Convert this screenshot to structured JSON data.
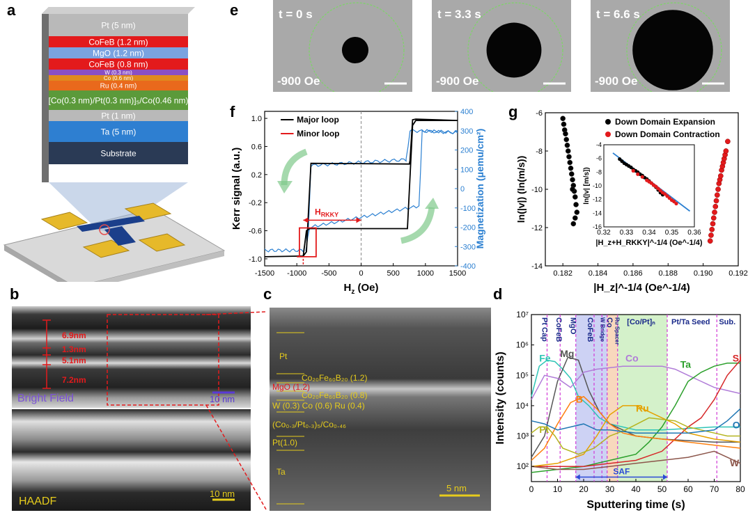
{
  "panels": {
    "a": "a",
    "b": "b",
    "c": "c",
    "d": "d",
    "e": "e",
    "f": "f",
    "g": "g"
  },
  "stack_layers": [
    {
      "label": "Pt (5 nm)",
      "color": "#b9b9b9"
    },
    {
      "label": "CoFeB (1.2 nm)",
      "color": "#e31a1c"
    },
    {
      "label": "MgO (1.2 nm)",
      "color": "#7aa3e0"
    },
    {
      "label": "CoFeB (0.8 nm)",
      "color": "#e31a1c"
    },
    {
      "label": "W (0.3 nm)",
      "color": "#8a4fc4"
    },
    {
      "label": "Co (0.6 nm)",
      "color": "#e08a1e"
    },
    {
      "label": "Ru (0.4 nm)",
      "color": "#e9691c"
    },
    {
      "label": "[Co(0.3 nm)/Pt(0.3 nm)]₅/Co(0.46 nm)",
      "color": "#5b9a3a"
    },
    {
      "label": "Pt (1 nm)",
      "color": "#b9b9b9"
    },
    {
      "label": "Ta (5 nm)",
      "color": "#2e7fd1"
    },
    {
      "label": "Substrate",
      "color": "#2a3a55"
    }
  ],
  "panel_b": {
    "thickness": [
      "6.9nm",
      "1.3nm",
      "5.1nm",
      "7.2nm"
    ],
    "bright_field": "Bright Field",
    "haadf": "HAADF",
    "scale": "10 nm"
  },
  "panel_c": {
    "labels": [
      "Pt",
      "Co₂₀Fe₆₀B₂₀ (1.2)",
      "MgO (1.2)",
      "Co₂₀Fe₆₀B₂₀ (0.8)",
      "W (0.3) Co (0.6) Ru (0.4)",
      "(Co₀.₃/Pt₀.₃)₅/Co₀.₄₆",
      "Pt(1.0)",
      "Ta"
    ],
    "scale": "5 nm"
  },
  "panel_e": {
    "frames": [
      {
        "time": "t = 0 s",
        "field": "-900 Oe",
        "domain_r": 0.28
      },
      {
        "time": "t = 3.3 s",
        "field": "-900 Oe",
        "domain_r": 0.58
      },
      {
        "time": "t = 6.6 s",
        "field": "-900 Oe",
        "domain_r": 0.85
      }
    ]
  },
  "chart_data": [
    {
      "id": "f",
      "type": "line",
      "xlabel": "H_z (Oe)",
      "ylabel": "Kerr signal (a.u.)",
      "y2label": "Magnetization (μemu/cm²)",
      "xlim": [
        -1500,
        1500
      ],
      "ylim": [
        -1.1,
        1.1
      ],
      "y2lim": [
        -400,
        400
      ],
      "xticks": [
        "-1500",
        "-1000",
        "-500",
        "0",
        "500",
        "1000",
        "1500"
      ],
      "yticks": [
        "1.0",
        "0.6",
        "0.2",
        "-0.2",
        "-0.6",
        "-1.0"
      ],
      "y2ticks": [
        "400",
        "300",
        "200",
        "100",
        "0",
        "-100",
        "-200",
        "-300",
        "-400"
      ],
      "legend": [
        "Major loop",
        "Minor loop"
      ],
      "annotation": "H_RKKY",
      "series": [
        {
          "name": "Major loop",
          "color": "#000000",
          "x": [
            -1500,
            -900,
            -850,
            -800,
            -780,
            750,
            760,
            800,
            850,
            1500,
            850,
            800,
            720,
            -800,
            -850,
            -900,
            -1500
          ],
          "y": [
            -0.97,
            -0.96,
            -0.9,
            0.0,
            0.36,
            0.35,
            0.4,
            0.98,
            0.99,
            0.97,
            0.97,
            0.9,
            -0.57,
            -0.57,
            -0.6,
            -0.96,
            -0.97
          ]
        },
        {
          "name": "Minor loop",
          "color": "#e31a1c",
          "x": [
            -1000,
            -960,
            -960,
            -700,
            -700,
            -1000
          ],
          "y": [
            -0.97,
            -0.97,
            -0.56,
            -0.56,
            -0.97,
            -0.97
          ]
        }
      ]
    },
    {
      "id": "g",
      "type": "scatter",
      "xlabel": "|H_z|^-1/4 (Oe^-1/4)",
      "ylabel": "ln(|v|) (ln(m/s))",
      "xlim": [
        0.181,
        0.192
      ],
      "ylim": [
        -14,
        -6
      ],
      "xticks": [
        "0.182",
        "0.184",
        "0.186",
        "0.188",
        "0.190",
        "0.192"
      ],
      "yticks": [
        "-6",
        "-8",
        "-10",
        "-12",
        "-14"
      ],
      "legend": [
        "Down Domain Expansion",
        "Down Domain Contraction"
      ],
      "series": [
        {
          "name": "Down Domain Expansion",
          "color": "#000000",
          "x": [
            0.182,
            0.18205,
            0.1821,
            0.18215,
            0.1822,
            0.18225,
            0.1823,
            0.18235,
            0.1824,
            0.18245,
            0.1825,
            0.18255,
            0.1826,
            0.18265,
            0.1827,
            0.18275,
            0.1828,
            0.1827,
            0.1826,
            0.18255
          ],
          "y": [
            -6.3,
            -6.6,
            -6.9,
            -7.1,
            -7.4,
            -7.7,
            -8.0,
            -8.3,
            -8.6,
            -8.9,
            -9.2,
            -9.5,
            -9.8,
            -10.1,
            -10.4,
            -10.8,
            -11.2,
            -11.5,
            -11.8,
            -10.0
          ]
        },
        {
          "name": "Down Domain Contraction",
          "color": "#e31a1c",
          "x": [
            0.1904,
            0.19045,
            0.1905,
            0.19055,
            0.1906,
            0.19065,
            0.1907,
            0.19075,
            0.1908,
            0.19085,
            0.1909,
            0.19095,
            0.191,
            0.19105,
            0.1911,
            0.19115,
            0.1912,
            0.19125,
            0.1913,
            0.1914
          ],
          "y": [
            -12.7,
            -12.4,
            -12.1,
            -11.8,
            -11.5,
            -11.2,
            -10.9,
            -10.6,
            -10.3,
            -10.0,
            -9.7,
            -9.5,
            -9.3,
            -9.0,
            -8.8,
            -8.6,
            -8.4,
            -8.2,
            -8.0,
            -7.5
          ]
        }
      ],
      "inset": {
        "xlabel": "|H_z+H_RKKY|^-1/4 (Oe^-1/4)",
        "ylabel": "ln(|v| [m/s])",
        "xlim": [
          0.32,
          0.36
        ],
        "ylim": [
          -16,
          -4
        ],
        "xticks": [
          "0.32",
          "0.33",
          "0.34",
          "0.35",
          "0.36"
        ],
        "yticks": [
          "-4",
          "-6",
          "-8",
          "-10",
          "-12",
          "-14",
          "-16"
        ],
        "series": [
          {
            "name": "Down Domain Expansion",
            "color": "#000000",
            "x": [
              0.327,
              0.328,
              0.329,
              0.33,
              0.331,
              0.332,
              0.333,
              0.334,
              0.335,
              0.336,
              0.337,
              0.338,
              0.339,
              0.34,
              0.341,
              0.342,
              0.343,
              0.344,
              0.345,
              0.346
            ],
            "y": [
              -6.1,
              -6.4,
              -6.7,
              -6.9,
              -7.1,
              -7.3,
              -7.6,
              -7.8,
              -8.0,
              -8.3,
              -8.5,
              -8.8,
              -9.0,
              -9.3,
              -9.6,
              -9.9,
              -10.2,
              -10.6,
              -11.0,
              -11.3
            ]
          },
          {
            "name": "Down Domain Contraction",
            "color": "#e31a1c",
            "x": [
              0.333,
              0.335,
              0.337,
              0.339,
              0.34,
              0.341,
              0.342,
              0.343,
              0.344,
              0.345,
              0.346,
              0.347,
              0.348,
              0.349,
              0.35,
              0.351,
              0.352
            ],
            "y": [
              -7.8,
              -8.3,
              -8.7,
              -9.2,
              -9.4,
              -9.6,
              -9.9,
              -10.1,
              -10.4,
              -10.7,
              -11.0,
              -11.2,
              -11.5,
              -11.8,
              -12.1,
              -12.3,
              -12.6
            ]
          }
        ],
        "fit": {
          "x": [
            0.324,
            0.358
          ],
          "y": [
            -5.2,
            -13.7
          ]
        }
      }
    },
    {
      "id": "d",
      "type": "line",
      "xlabel": "Sputtering time (s)",
      "ylabel": "Intensity (counts)",
      "xlim": [
        0,
        80
      ],
      "ylim_log10": [
        1.5,
        7
      ],
      "xticks": [
        "0",
        "10",
        "20",
        "30",
        "40",
        "50",
        "60",
        "70",
        "80"
      ],
      "yticks": [
        "10²",
        "10³",
        "10⁴",
        "10⁵",
        "10⁶",
        "10⁷"
      ],
      "regions": [
        "Pt Cap",
        "CoFeB",
        "MgO",
        "CoFeB",
        "W Bridge",
        "Co",
        "Ru Spacer",
        "[Co/Pt]ₙ",
        "Pt/Ta Seed",
        "Sub."
      ],
      "saf_label": "SAF",
      "series": [
        {
          "name": "Fe",
          "color": "#2ec4b6",
          "x": [
            0,
            3,
            6,
            9,
            12,
            15,
            18,
            22,
            26,
            30,
            35,
            40,
            50,
            60,
            70,
            80
          ],
          "y": [
            4.3,
            5.3,
            5.5,
            5.45,
            5.2,
            4.9,
            4.3,
            4.0,
            3.6,
            3.4,
            3.3,
            3.2,
            3.2,
            3.25,
            3.3,
            3.3
          ]
        },
        {
          "name": "Mg",
          "color": "#555555",
          "x": [
            0,
            5,
            10,
            14,
            18,
            22,
            26,
            30,
            35,
            40,
            50,
            60,
            70,
            80
          ],
          "y": [
            2.3,
            3.0,
            4.8,
            5.6,
            5.5,
            4.5,
            3.8,
            3.4,
            3.2,
            3.0,
            2.9,
            2.85,
            2.8,
            2.8
          ]
        },
        {
          "name": "Co",
          "color": "#b07cd8",
          "x": [
            0,
            5,
            10,
            15,
            20,
            25,
            30,
            35,
            40,
            50,
            55,
            60,
            65,
            70,
            75,
            80
          ],
          "y": [
            4.2,
            5.0,
            4.9,
            4.6,
            5.1,
            5.2,
            5.25,
            5.3,
            5.3,
            5.3,
            5.2,
            5.0,
            4.8,
            4.6,
            4.5,
            4.4
          ]
        },
        {
          "name": "Ta",
          "color": "#2ca02c",
          "x": [
            0,
            10,
            20,
            30,
            40,
            45,
            50,
            55,
            60,
            65,
            70,
            75,
            80
          ],
          "y": [
            1.8,
            1.9,
            2.0,
            2.2,
            2.4,
            2.8,
            3.3,
            4.0,
            4.8,
            5.1,
            5.3,
            5.4,
            5.4
          ]
        },
        {
          "name": "Si",
          "color": "#d62728",
          "x": [
            0,
            20,
            40,
            50,
            55,
            60,
            65,
            70,
            75,
            80
          ],
          "y": [
            2.0,
            2.0,
            2.2,
            2.5,
            2.9,
            3.3,
            3.6,
            4.2,
            5.0,
            5.5
          ]
        },
        {
          "name": "B",
          "color": "#ff7f0e",
          "x": [
            0,
            5,
            10,
            15,
            20,
            25,
            30,
            35,
            40,
            50,
            60,
            70,
            80
          ],
          "y": [
            2.2,
            2.6,
            3.4,
            4.1,
            4.3,
            3.9,
            3.4,
            3.1,
            3.0,
            2.9,
            2.8,
            2.7,
            2.6
          ]
        },
        {
          "name": "Ru",
          "color": "#e5a100",
          "x": [
            0,
            10,
            20,
            25,
            30,
            35,
            40,
            45,
            50,
            55,
            60,
            70,
            80
          ],
          "y": [
            2.0,
            2.1,
            2.4,
            3.0,
            3.7,
            4.0,
            4.0,
            3.8,
            3.6,
            3.4,
            3.1,
            2.9,
            2.8
          ]
        },
        {
          "name": "Pt",
          "color": "#b5b520",
          "x": [
            0,
            3,
            6,
            9,
            12,
            18,
            24,
            30,
            36,
            45,
            55,
            60,
            65,
            70,
            75,
            80
          ],
          "y": [
            3.1,
            3.3,
            3.3,
            3.0,
            2.6,
            2.4,
            2.6,
            3.0,
            3.2,
            3.6,
            3.5,
            3.3,
            3.2,
            3.1,
            3.0,
            3.0
          ]
        },
        {
          "name": "O",
          "color": "#1f77b4",
          "x": [
            0,
            5,
            10,
            15,
            20,
            25,
            30,
            40,
            50,
            60,
            70,
            75,
            80
          ],
          "y": [
            3.5,
            3.4,
            3.2,
            3.3,
            3.4,
            3.2,
            3.2,
            3.1,
            3.1,
            3.1,
            3.2,
            3.5,
            3.9
          ]
        },
        {
          "name": "W",
          "color": "#8c564b",
          "x": [
            0,
            10,
            20,
            30,
            40,
            50,
            60,
            70,
            75,
            80
          ],
          "y": [
            2.0,
            1.9,
            1.9,
            2.0,
            2.1,
            2.2,
            2.3,
            2.5,
            2.3,
            2.1
          ]
        }
      ]
    }
  ]
}
